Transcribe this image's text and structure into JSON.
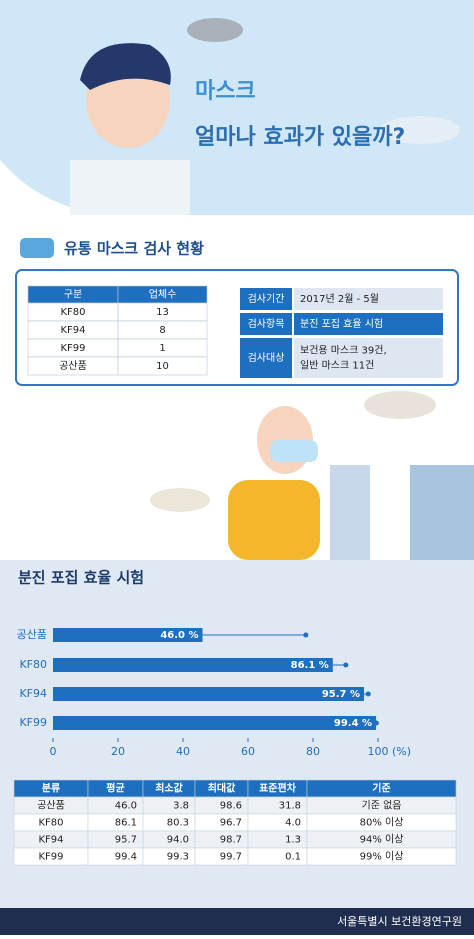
{
  "header": {
    "title_lines": [
      "마스크",
      "얼마나 효과가 있을까?"
    ]
  },
  "survey": {
    "title": "유통 마스크 검사 현황",
    "table": {
      "headers": [
        "구분",
        "업체수"
      ],
      "rows": [
        [
          "KF80",
          "13"
        ],
        [
          "KF94",
          "8"
        ],
        [
          "KF99",
          "1"
        ],
        [
          "공산품",
          "10"
        ]
      ]
    },
    "info": [
      {
        "label": "검사기간",
        "lines": [
          "2017년 2월 - 5월"
        ]
      },
      {
        "label": "검사항목",
        "lines": [
          "분진 포집 효율 시험"
        ]
      },
      {
        "label": "검사대상",
        "lines": [
          "보건용 마스크 39건,",
          "일반 마스크 11건"
        ]
      }
    ]
  },
  "test": {
    "title": "분진 포집 효율 시험",
    "chart_data": {
      "type": "bar",
      "orientation": "horizontal",
      "categories": [
        "공산품",
        "KF80",
        "KF94",
        "KF99"
      ],
      "values": [
        46.0,
        86.1,
        95.7,
        99.4
      ],
      "value_labels": [
        "46.0 %",
        "86.1 %",
        "95.7 %",
        "99.4 %"
      ],
      "errors": [
        31.8,
        4.0,
        1.3,
        0.1
      ],
      "color": "#1f6fc0",
      "xlim": [
        0,
        100
      ],
      "xticks": [
        0,
        20,
        40,
        60,
        80,
        100
      ],
      "xlabel": "(%)"
    },
    "table": {
      "headers": [
        "분류",
        "평균",
        "최소값",
        "최대값",
        "표준편차",
        "기준"
      ],
      "rows": [
        [
          "공산품",
          "46.0",
          "3.8",
          "98.6",
          "31.8",
          "기준 없음"
        ],
        [
          "KF80",
          "86.1",
          "80.3",
          "96.7",
          "4.0",
          "80% 이상"
        ],
        [
          "KF94",
          "95.7",
          "94.0",
          "98.7",
          "1.3",
          "94% 이상"
        ],
        [
          "KF99",
          "99.4",
          "99.3",
          "99.7",
          "0.1",
          "99% 이상"
        ]
      ]
    }
  },
  "footer": {
    "text": "서울특별시 보건환경연구원"
  }
}
